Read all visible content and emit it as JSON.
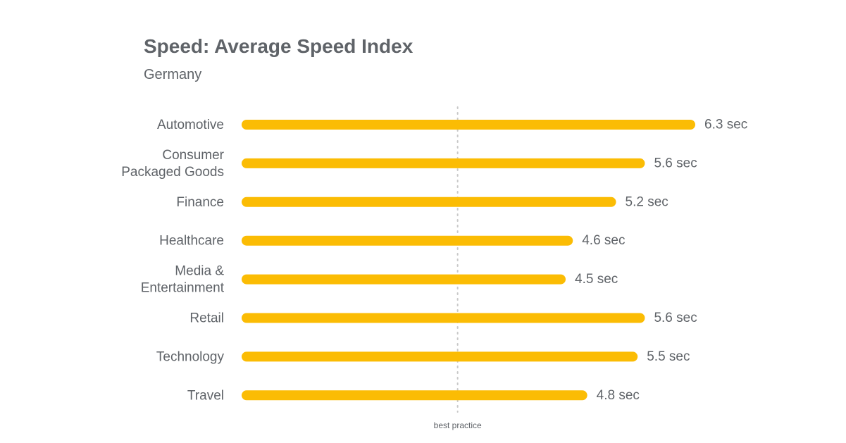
{
  "chart_data": {
    "type": "bar",
    "orientation": "horizontal",
    "title": "Speed: Average Speed Index",
    "subtitle": "Germany",
    "categories": [
      [
        "Automotive"
      ],
      [
        "Consumer",
        "Packaged Goods"
      ],
      [
        "Finance"
      ],
      [
        "Healthcare"
      ],
      [
        "Media &",
        "Entertainment"
      ],
      [
        "Retail"
      ],
      [
        "Technology"
      ],
      [
        "Travel"
      ]
    ],
    "values": [
      6.3,
      5.6,
      5.2,
      4.6,
      4.5,
      5.6,
      5.5,
      4.8
    ],
    "value_labels": [
      "6.3 sec",
      "5.6 sec",
      "5.2 sec",
      "4.6 sec",
      "4.5 sec",
      "5.6 sec",
      "5.5 sec",
      "4.8 sec"
    ],
    "unit": "sec",
    "xlim": [
      0,
      6.3
    ],
    "reference_line": {
      "label": "best practice",
      "value": 3.0,
      "style": "dotted"
    },
    "bar_color": "#fbbc04",
    "reference_color": "#c8c8c8",
    "text_color": "#5f6368",
    "grid": false,
    "legend": "none"
  }
}
